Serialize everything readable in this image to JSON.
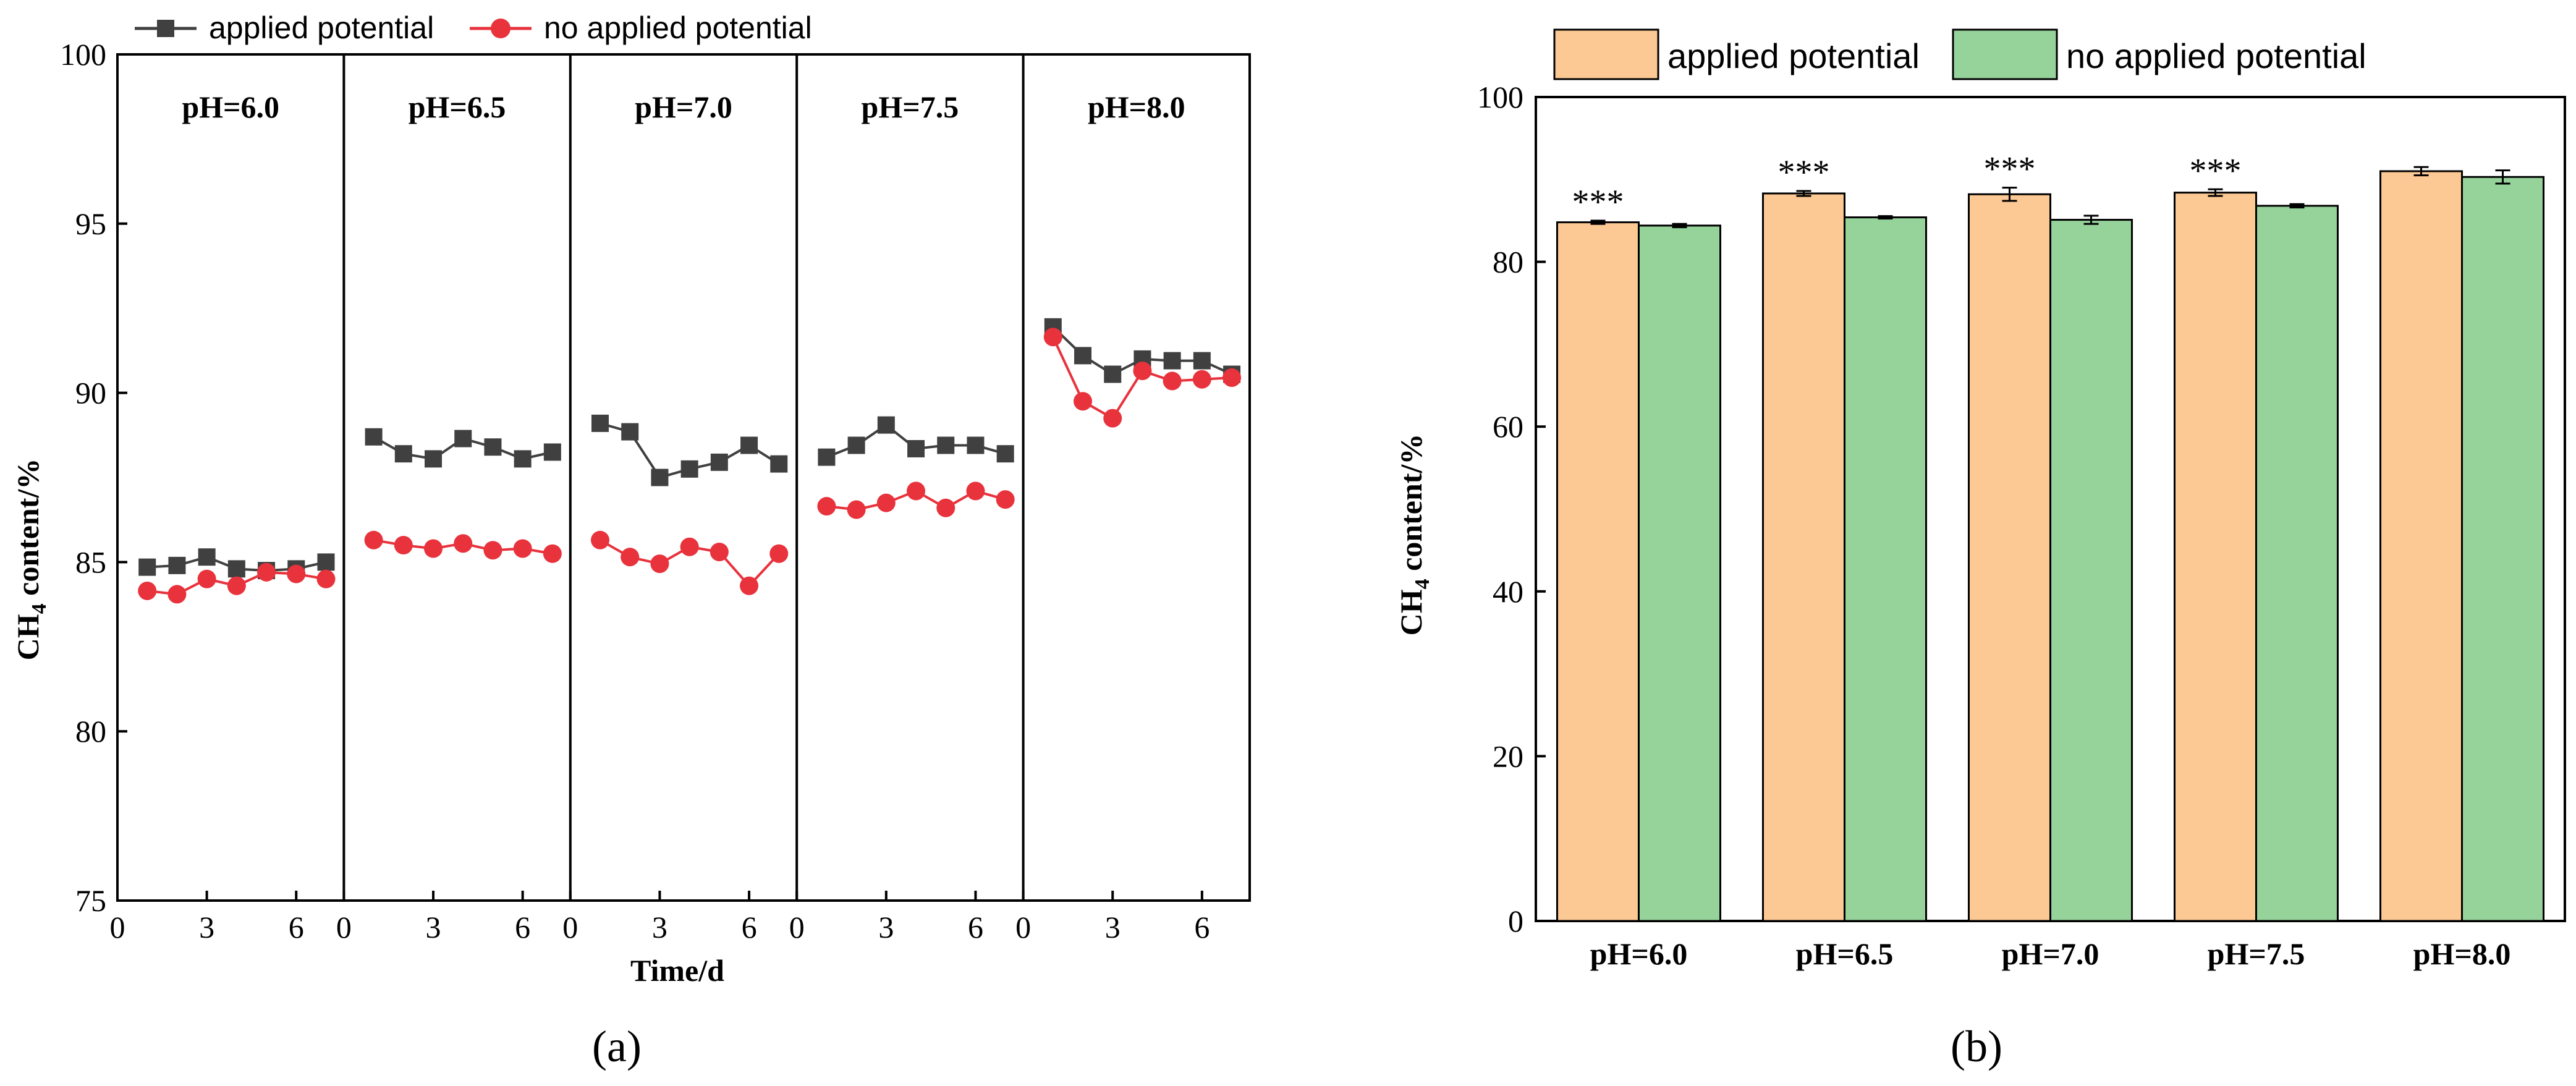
{
  "colors": {
    "applied_line": "#404040",
    "no_applied_line": "#e8323c",
    "applied_bar": "#fcc994",
    "no_applied_bar": "#96d39b",
    "axis": "#000000"
  },
  "chart_data": [
    {
      "id": "a",
      "type": "line",
      "panel_label": "(a)",
      "title": "",
      "xlabel": "Time/d",
      "ylabel_main": "CH",
      "ylabel_sub": "4",
      "ylabel_rest": " content/%",
      "ylim": [
        75,
        100
      ],
      "yticks": [
        "75",
        "80",
        "85",
        "90",
        "95",
        "100"
      ],
      "xticks": [
        "0",
        "3",
        "6"
      ],
      "grid": false,
      "legend_position": "top",
      "legend": [
        "applied potential",
        "no applied potential"
      ],
      "groups": [
        {
          "label": "pH=6.0",
          "x": [
            1,
            2,
            3,
            4,
            5,
            6,
            7
          ],
          "series": [
            {
              "name": "applied potential",
              "values": [
                84.85,
                84.9,
                85.15,
                84.8,
                84.75,
                84.8,
                85.0
              ]
            },
            {
              "name": "no applied potential",
              "values": [
                84.15,
                84.05,
                84.5,
                84.3,
                84.7,
                84.65,
                84.5
              ]
            }
          ]
        },
        {
          "label": "pH=6.5",
          "x": [
            1,
            2,
            3,
            4,
            5,
            6,
            7
          ],
          "series": [
            {
              "name": "applied potential",
              "values": [
                88.7,
                88.2,
                88.05,
                88.65,
                88.4,
                88.05,
                88.25
              ]
            },
            {
              "name": "no applied potential",
              "values": [
                85.65,
                85.5,
                85.4,
                85.55,
                85.35,
                85.4,
                85.25
              ]
            }
          ]
        },
        {
          "label": "pH=7.0",
          "x": [
            1,
            2,
            3,
            4,
            5,
            6,
            7
          ],
          "series": [
            {
              "name": "applied potential",
              "values": [
                89.1,
                88.85,
                87.5,
                87.75,
                87.95,
                88.45,
                87.9
              ]
            },
            {
              "name": "no applied potential",
              "values": [
                85.65,
                85.15,
                84.95,
                85.45,
                85.3,
                84.3,
                85.25
              ]
            }
          ]
        },
        {
          "label": "pH=7.5",
          "x": [
            1,
            2,
            3,
            4,
            5,
            6,
            7
          ],
          "series": [
            {
              "name": "applied potential",
              "values": [
                88.1,
                88.45,
                89.05,
                88.35,
                88.45,
                88.45,
                88.2
              ]
            },
            {
              "name": "no applied potential",
              "values": [
                86.65,
                86.55,
                86.75,
                87.1,
                86.6,
                87.1,
                86.85
              ]
            }
          ]
        },
        {
          "label": "pH=8.0",
          "x": [
            1,
            2,
            3,
            4,
            5,
            6,
            7
          ],
          "series": [
            {
              "name": "applied potential",
              "values": [
                91.95,
                91.1,
                90.55,
                91.0,
                90.95,
                90.95,
                90.55
              ]
            },
            {
              "name": "no applied potential",
              "values": [
                91.65,
                89.75,
                89.25,
                90.65,
                90.35,
                90.4,
                90.45
              ]
            }
          ]
        }
      ]
    },
    {
      "id": "b",
      "type": "bar",
      "panel_label": "(b)",
      "title": "",
      "xlabel": "",
      "ylabel_main": "CH",
      "ylabel_sub": "4",
      "ylabel_rest": " content/%",
      "ylim": [
        0,
        100
      ],
      "yticks": [
        "0",
        "20",
        "40",
        "60",
        "80",
        "100"
      ],
      "grid": false,
      "legend_position": "top",
      "legend": [
        "applied potential",
        "no applied potential"
      ],
      "categories": [
        "pH=6.0",
        "pH=6.5",
        "pH=7.0",
        "pH=7.5",
        "pH=8.0"
      ],
      "series": [
        {
          "name": "applied potential",
          "values": [
            84.8,
            88.3,
            88.2,
            88.4,
            91.0
          ],
          "errors": [
            0.2,
            0.3,
            0.8,
            0.4,
            0.5
          ]
        },
        {
          "name": "no applied potential",
          "values": [
            84.4,
            85.4,
            85.1,
            86.8,
            90.3
          ],
          "errors": [
            0.2,
            0.15,
            0.5,
            0.2,
            0.8
          ]
        }
      ],
      "annotations": [
        "***",
        "***",
        "***",
        "***",
        ""
      ]
    }
  ]
}
